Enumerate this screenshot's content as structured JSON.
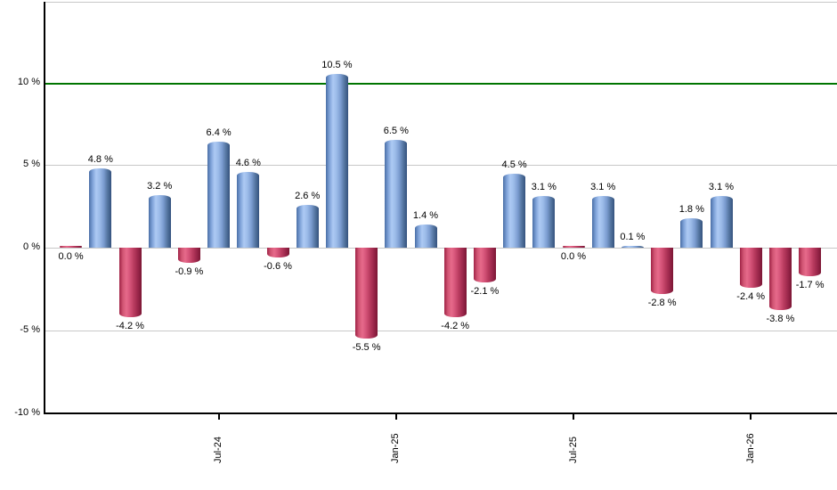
{
  "chart_data": {
    "type": "bar",
    "title": "",
    "xlabel": "",
    "ylabel": "",
    "ylim": [
      -10,
      14.9
    ],
    "grid": "on",
    "legend": "none",
    "values": [
      0.0,
      4.8,
      -4.2,
      3.2,
      -0.9,
      6.4,
      4.6,
      -0.6,
      2.6,
      10.5,
      -5.5,
      6.5,
      1.4,
      -4.2,
      -2.1,
      4.5,
      3.1,
      0.0,
      3.1,
      0.1,
      -2.8,
      1.8,
      3.1,
      -2.4,
      -3.8,
      -1.7
    ],
    "bar_labels": [
      "0.0 %",
      "4.8 %",
      "-4.2 %",
      "3.2 %",
      "-0.9 %",
      "6.4 %",
      "4.6 %",
      "-0.6 %",
      "2.6 %",
      "10.5 %",
      "-5.5 %",
      "6.5 %",
      "1.4 %",
      "-4.2 %",
      "-2.1 %",
      "4.5 %",
      "3.1 %",
      "0.0 %",
      "3.1 %",
      "0.1 %",
      "-2.8 %",
      "1.8 %",
      "3.1 %",
      "-2.4 %",
      "-3.8 %",
      "-1.7 %"
    ],
    "bar_colors": [
      "red",
      "blue",
      "red",
      "blue",
      "red",
      "blue",
      "blue",
      "red",
      "blue",
      "blue",
      "red",
      "blue",
      "blue",
      "red",
      "red",
      "blue",
      "blue",
      "red",
      "blue",
      "blue",
      "red",
      "blue",
      "blue",
      "red",
      "red",
      "red"
    ],
    "x_tick_labels": [
      {
        "label": "Jul-24",
        "index": 5
      },
      {
        "label": "Jan-25",
        "index": 11
      },
      {
        "label": "Jul-25",
        "index": 17
      },
      {
        "label": "Jan-26",
        "index": 23
      }
    ],
    "y_tick_labels": [
      {
        "label": "10 %",
        "value": 10
      },
      {
        "label": "5 %",
        "value": 5
      },
      {
        "label": "0 %",
        "value": 0
      },
      {
        "label": "-5 %",
        "value": -5
      },
      {
        "label": "-10 %",
        "value": -10
      }
    ],
    "benchmark_line": {
      "value": 10,
      "color": "#007500"
    },
    "colors": {
      "positive_highlight": "#adcaf4",
      "positive_edge": "#34527e",
      "negative_highlight": "#e66a8b",
      "negative_edge": "#7b1634",
      "gridline": "#c8c8c8",
      "axis": "#000000"
    }
  }
}
